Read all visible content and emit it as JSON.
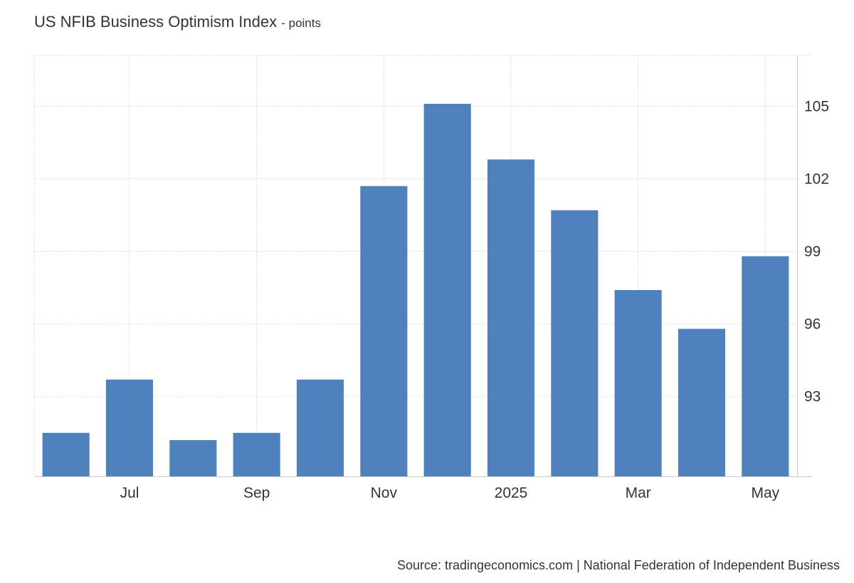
{
  "header": {
    "title": "US NFIB Business Optimism Index",
    "unit": "- points"
  },
  "footer": {
    "source": "Source: tradingeconomics.com | National Federation of Independent Business"
  },
  "colors": {
    "bar": "#4f81bd",
    "grid": "#d9d9d9",
    "axis": "#c8c8c8",
    "text": "#333333"
  },
  "chart_data": {
    "type": "bar",
    "title": "US NFIB Business Optimism Index",
    "ylabel": "points",
    "categories": [
      "2024-06",
      "2024-07",
      "2024-08",
      "2024-09",
      "2024-10",
      "2024-11",
      "2024-12",
      "2025-01",
      "2025-02",
      "2025-03",
      "2025-04",
      "2025-05"
    ],
    "values": [
      91.5,
      93.7,
      91.2,
      91.5,
      93.7,
      101.7,
      105.1,
      102.8,
      100.7,
      97.4,
      95.8,
      98.8
    ],
    "x_tick_labels": [
      "Jul",
      "Sep",
      "Nov",
      "2025",
      "Mar",
      "May"
    ],
    "x_tick_categories": [
      "2024-07",
      "2024-09",
      "2024-11",
      "2025-01",
      "2025-03",
      "2025-05"
    ],
    "y_ticks": [
      93,
      96,
      99,
      102,
      105
    ],
    "ylim": [
      89.7,
      107.1
    ],
    "grid": true,
    "y_axis_side": "right",
    "legend": "none"
  }
}
